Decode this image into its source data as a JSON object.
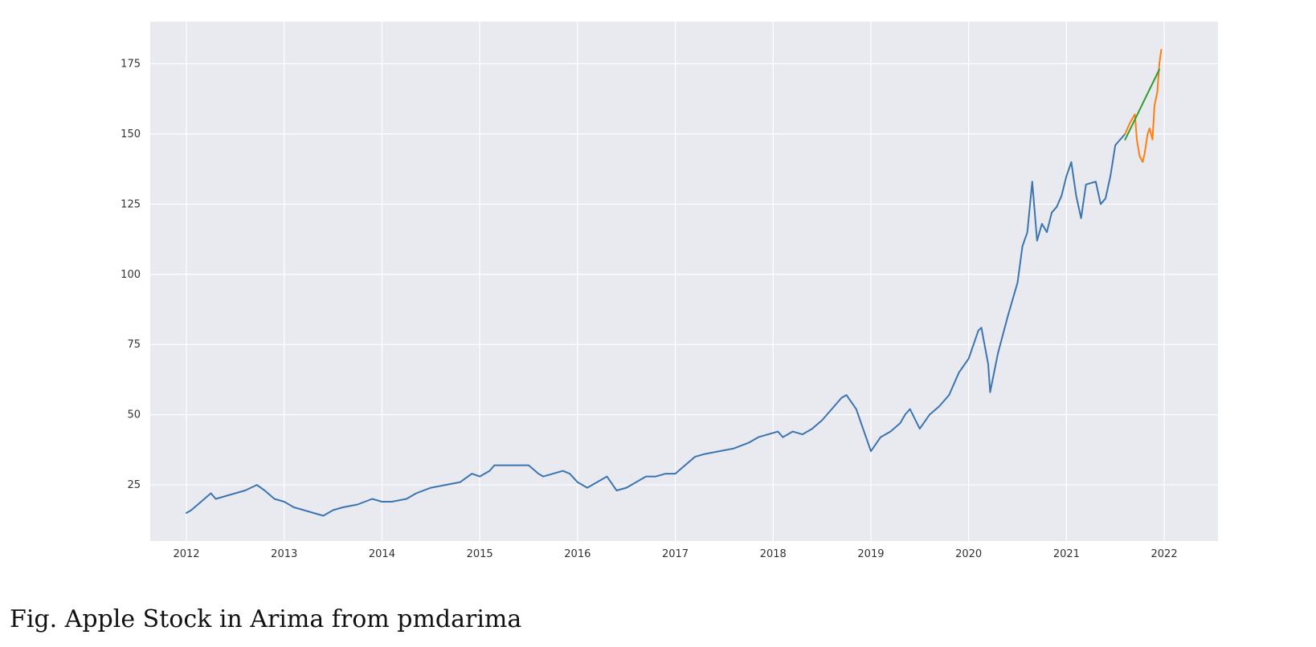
{
  "caption": "Fig.  Apple Stock in Arima from pmdarima",
  "chart_data": {
    "type": "line",
    "title": "",
    "xlabel": "",
    "ylabel": "",
    "xlim": [
      2011.63,
      2022.55
    ],
    "ylim": [
      5,
      190
    ],
    "xticks": [
      2012,
      2013,
      2014,
      2015,
      2016,
      2017,
      2018,
      2019,
      2020,
      2021,
      2022
    ],
    "xtick_labels": [
      "2012",
      "2013",
      "2014",
      "2015",
      "2016",
      "2017",
      "2018",
      "2019",
      "2020",
      "2021",
      "2022"
    ],
    "yticks": [
      25,
      50,
      75,
      100,
      125,
      150,
      175
    ],
    "ytick_labels": [
      "25",
      "50",
      "75",
      "100",
      "125",
      "150",
      "175"
    ],
    "grid": true,
    "background_color": "#e9e9f0",
    "series": [
      {
        "color": "#3b75af",
        "x": [
          2012.0,
          2012.05,
          2012.15,
          2012.25,
          2012.3,
          2012.4,
          2012.5,
          2012.6,
          2012.72,
          2012.8,
          2012.9,
          2013.0,
          2013.1,
          2013.2,
          2013.3,
          2013.4,
          2013.5,
          2013.6,
          2013.75,
          2013.9,
          2014.0,
          2014.1,
          2014.25,
          2014.35,
          2014.5,
          2014.65,
          2014.8,
          2014.92,
          2015.0,
          2015.1,
          2015.15,
          2015.3,
          2015.4,
          2015.5,
          2015.6,
          2015.65,
          2015.75,
          2015.85,
          2015.92,
          2016.0,
          2016.1,
          2016.2,
          2016.3,
          2016.4,
          2016.5,
          2016.6,
          2016.7,
          2016.8,
          2016.9,
          2017.0,
          2017.1,
          2017.2,
          2017.3,
          2017.45,
          2017.6,
          2017.75,
          2017.85,
          2017.95,
          2018.05,
          2018.1,
          2018.2,
          2018.3,
          2018.4,
          2018.5,
          2018.6,
          2018.7,
          2018.75,
          2018.85,
          2018.95,
          2019.0,
          2019.1,
          2019.2,
          2019.3,
          2019.35,
          2019.4,
          2019.5,
          2019.6,
          2019.7,
          2019.8,
          2019.9,
          2020.0,
          2020.1,
          2020.13,
          2020.2,
          2020.22,
          2020.3,
          2020.4,
          2020.5,
          2020.55,
          2020.6,
          2020.65,
          2020.7,
          2020.75,
          2020.8,
          2020.85,
          2020.9,
          2020.95,
          2021.0,
          2021.05,
          2021.1,
          2021.15,
          2021.2,
          2021.3,
          2021.35,
          2021.4,
          2021.45,
          2021.5,
          2021.55,
          2021.6
        ],
        "y": [
          15,
          16,
          19,
          22,
          20,
          21,
          22,
          23,
          25,
          23,
          20,
          19,
          17,
          16,
          15,
          14,
          16,
          17,
          18,
          20,
          19,
          19,
          20,
          22,
          24,
          25,
          26,
          29,
          28,
          30,
          32,
          32,
          32,
          32,
          29,
          28,
          29,
          30,
          29,
          26,
          24,
          26,
          28,
          23,
          24,
          26,
          28,
          28,
          29,
          29,
          32,
          35,
          36,
          37,
          38,
          40,
          42,
          43,
          44,
          42,
          44,
          43,
          45,
          48,
          52,
          56,
          57,
          52,
          42,
          37,
          42,
          44,
          47,
          50,
          52,
          45,
          50,
          53,
          57,
          65,
          70,
          80,
          81,
          68,
          58,
          72,
          85,
          97,
          110,
          115,
          133,
          112,
          118,
          115,
          122,
          124,
          128,
          135,
          140,
          128,
          120,
          132,
          133,
          125,
          127,
          135,
          146,
          148,
          150
        ]
      },
      {
        "color": "#ff7f0e",
        "x": [
          2021.6,
          2021.65,
          2021.7,
          2021.72,
          2021.75,
          2021.78,
          2021.8,
          2021.83,
          2021.85,
          2021.88,
          2021.9,
          2021.93,
          2021.95,
          2021.97
        ],
        "y": [
          150,
          154,
          157,
          148,
          142,
          140,
          143,
          150,
          152,
          148,
          160,
          165,
          175,
          180
        ]
      },
      {
        "color": "#2ca02c",
        "x": [
          2021.6,
          2021.95
        ],
        "y": [
          148,
          173
        ]
      }
    ]
  }
}
